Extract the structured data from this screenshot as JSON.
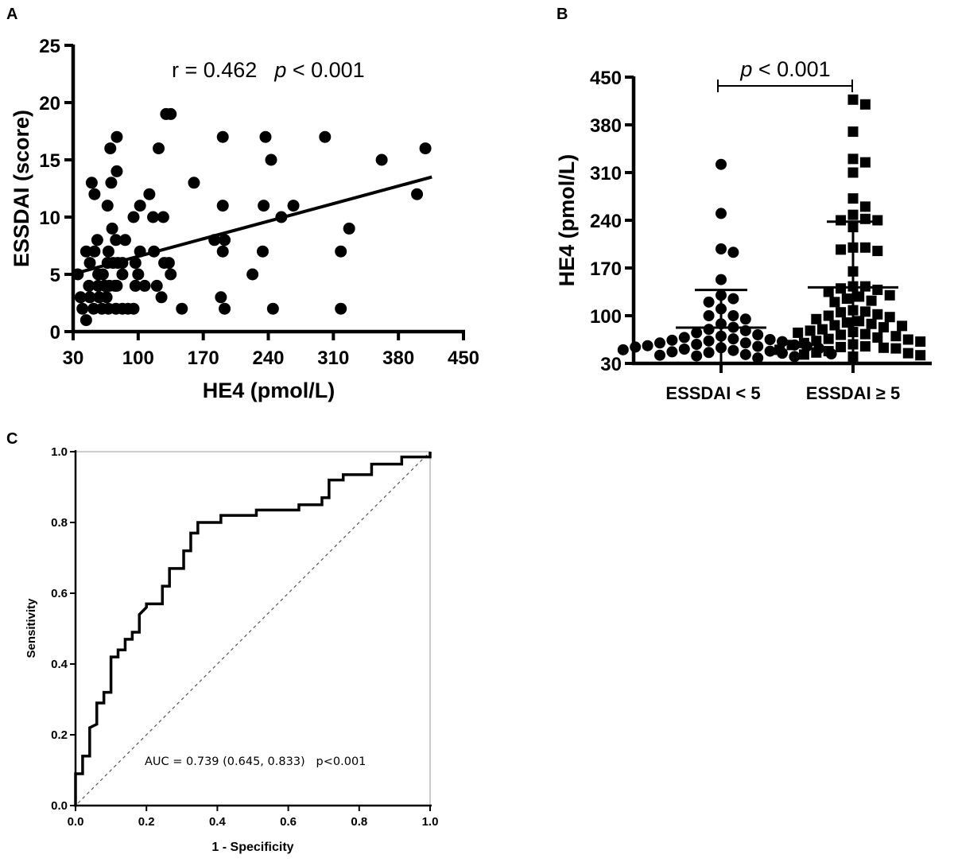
{
  "chart_data": [
    {
      "panel": "A",
      "type": "scatter",
      "xlabel": "HE4 (pmol/L)",
      "ylabel": "ESSDAI (score)",
      "xlim": [
        30,
        450
      ],
      "ylim": [
        0,
        25
      ],
      "xticks": [
        30,
        100,
        170,
        240,
        310,
        380,
        450
      ],
      "yticks": [
        0,
        5,
        10,
        15,
        20,
        25
      ],
      "annotation": {
        "r_text": "r = 0.462",
        "p_italic": "p",
        "p_text": " < 0.001"
      },
      "regression_line": {
        "x": [
          33,
          416
        ],
        "y": [
          5.1,
          13.5
        ]
      },
      "marker_color": "#000000",
      "points": [
        [
          35,
          5
        ],
        [
          38,
          3
        ],
        [
          40,
          2
        ],
        [
          44,
          1
        ],
        [
          44,
          7
        ],
        [
          50,
          13
        ],
        [
          53,
          12
        ],
        [
          48,
          6
        ],
        [
          47,
          4
        ],
        [
          48,
          3
        ],
        [
          52,
          2
        ],
        [
          53,
          7
        ],
        [
          56,
          8
        ],
        [
          57,
          5
        ],
        [
          57,
          4
        ],
        [
          58,
          3
        ],
        [
          62,
          5
        ],
        [
          64,
          4
        ],
        [
          61,
          2
        ],
        [
          66,
          3
        ],
        [
          67,
          6
        ],
        [
          68,
          2
        ],
        [
          68,
          7
        ],
        [
          69,
          4
        ],
        [
          67,
          11
        ],
        [
          70,
          16
        ],
        [
          71,
          13
        ],
        [
          72,
          9
        ],
        [
          73,
          6
        ],
        [
          75,
          4
        ],
        [
          76,
          2
        ],
        [
          76,
          8
        ],
        [
          77,
          17
        ],
        [
          77,
          14
        ],
        [
          78,
          6
        ],
        [
          77,
          4
        ],
        [
          83,
          5
        ],
        [
          83,
          6
        ],
        [
          83,
          2
        ],
        [
          86,
          8
        ],
        [
          89,
          2
        ],
        [
          95,
          2
        ],
        [
          95,
          10
        ],
        [
          97,
          6
        ],
        [
          97,
          4
        ],
        [
          100,
          5
        ],
        [
          102,
          11
        ],
        [
          102,
          7
        ],
        [
          107,
          4
        ],
        [
          112,
          12
        ],
        [
          116,
          10
        ],
        [
          117,
          7
        ],
        [
          120,
          4
        ],
        [
          122,
          16
        ],
        [
          125,
          3
        ],
        [
          127,
          10
        ],
        [
          128,
          6
        ],
        [
          133,
          6
        ],
        [
          130,
          19
        ],
        [
          135,
          19
        ],
        [
          135,
          5
        ],
        [
          147,
          2
        ],
        [
          160,
          13
        ],
        [
          182,
          8
        ],
        [
          189,
          3
        ],
        [
          191,
          11
        ],
        [
          191,
          17
        ],
        [
          191,
          7
        ],
        [
          193,
          8
        ],
        [
          193,
          2
        ],
        [
          223,
          5
        ],
        [
          234,
          7
        ],
        [
          235,
          11
        ],
        [
          237,
          17
        ],
        [
          243,
          15
        ],
        [
          245,
          2
        ],
        [
          254,
          10
        ],
        [
          267,
          11
        ],
        [
          301,
          17
        ],
        [
          318,
          2
        ],
        [
          318,
          7
        ],
        [
          327,
          9
        ],
        [
          362,
          15
        ],
        [
          400,
          12
        ],
        [
          409,
          16
        ]
      ]
    },
    {
      "panel": "B",
      "type": "scatter",
      "ylabel": "HE4 (pmol/L)",
      "ylim": [
        30,
        450
      ],
      "yticks": [
        30,
        100,
        170,
        240,
        310,
        380,
        450
      ],
      "categories": [
        "ESSDAI < 5",
        "ESSDAI ≥ 5"
      ],
      "annotation": {
        "p_italic": "p",
        "p_text": " < 0.001"
      },
      "groups": [
        {
          "category": "ESSDAI < 5",
          "marker": "circle",
          "mean": 82.5,
          "sd_upper": 137.7,
          "values": [
            322,
            250,
            198,
            193,
            153,
            130,
            125,
            120,
            110,
            100,
            100,
            95,
            88,
            83,
            80,
            78,
            75,
            72,
            70,
            68,
            66,
            65,
            64,
            63,
            62,
            60,
            60,
            58,
            57,
            56,
            55,
            55,
            54,
            53,
            52,
            51,
            50,
            49,
            48,
            47,
            46,
            45,
            44,
            43,
            42,
            41,
            40,
            38
          ]
        },
        {
          "category": "ESSDAI ≥ 5",
          "marker": "square",
          "mean": 141.6,
          "sd_upper": 238,
          "values": [
            417,
            410,
            370,
            330,
            325,
            310,
            272,
            260,
            248,
            240,
            240,
            242,
            230,
            200,
            197,
            195,
            200,
            165,
            143,
            143,
            140,
            138,
            135,
            130,
            128,
            125,
            122,
            120,
            108,
            106,
            105,
            102,
            100,
            98,
            95,
            92,
            90,
            88,
            86,
            85,
            83,
            80,
            78,
            76,
            75,
            73,
            72,
            70,
            68,
            66,
            65,
            63,
            62,
            60,
            58,
            57,
            55,
            54,
            53,
            52,
            50,
            48,
            46,
            45,
            43,
            42,
            40
          ]
        }
      ]
    },
    {
      "panel": "C",
      "type": "line",
      "xlabel": "1 - Specificity",
      "ylabel": "Sensitivity",
      "xlim": [
        0,
        1
      ],
      "ylim": [
        0,
        1
      ],
      "xticks": [
        "0.0",
        "0.2",
        "0.4",
        "0.6",
        "0.8",
        "1.0"
      ],
      "yticks": [
        "0.0",
        "0.2",
        "0.4",
        "0.6",
        "0.8",
        "1.0"
      ],
      "annotation": "AUC = 0.739 (0.645, 0.833)   p<0.001",
      "reference_line": {
        "x": [
          0,
          1
        ],
        "y": [
          0,
          1
        ],
        "style": "dashed"
      },
      "roc": [
        [
          0,
          0
        ],
        [
          0,
          0.09
        ],
        [
          0.02,
          0.09
        ],
        [
          0.02,
          0.14
        ],
        [
          0.04,
          0.14
        ],
        [
          0.04,
          0.22
        ],
        [
          0.06,
          0.23
        ],
        [
          0.06,
          0.29
        ],
        [
          0.08,
          0.29
        ],
        [
          0.08,
          0.32
        ],
        [
          0.1,
          0.32
        ],
        [
          0.1,
          0.42
        ],
        [
          0.12,
          0.42
        ],
        [
          0.12,
          0.44
        ],
        [
          0.14,
          0.44
        ],
        [
          0.14,
          0.47
        ],
        [
          0.16,
          0.47
        ],
        [
          0.16,
          0.49
        ],
        [
          0.18,
          0.49
        ],
        [
          0.18,
          0.54
        ],
        [
          0.2,
          0.56
        ],
        [
          0.2,
          0.57
        ],
        [
          0.245,
          0.57
        ],
        [
          0.245,
          0.62
        ],
        [
          0.265,
          0.62
        ],
        [
          0.265,
          0.67
        ],
        [
          0.305,
          0.67
        ],
        [
          0.305,
          0.72
        ],
        [
          0.325,
          0.72
        ],
        [
          0.325,
          0.77
        ],
        [
          0.345,
          0.77
        ],
        [
          0.345,
          0.8
        ],
        [
          0.41,
          0.8
        ],
        [
          0.41,
          0.82
        ],
        [
          0.51,
          0.82
        ],
        [
          0.51,
          0.835
        ],
        [
          0.63,
          0.835
        ],
        [
          0.63,
          0.85
        ],
        [
          0.695,
          0.85
        ],
        [
          0.695,
          0.87
        ],
        [
          0.715,
          0.87
        ],
        [
          0.715,
          0.92
        ],
        [
          0.755,
          0.92
        ],
        [
          0.755,
          0.935
        ],
        [
          0.835,
          0.935
        ],
        [
          0.835,
          0.965
        ],
        [
          0.92,
          0.965
        ],
        [
          0.92,
          0.985
        ],
        [
          1,
          0.985
        ],
        [
          1,
          1
        ]
      ]
    }
  ],
  "panel_labels": [
    "A",
    "B",
    "C"
  ]
}
